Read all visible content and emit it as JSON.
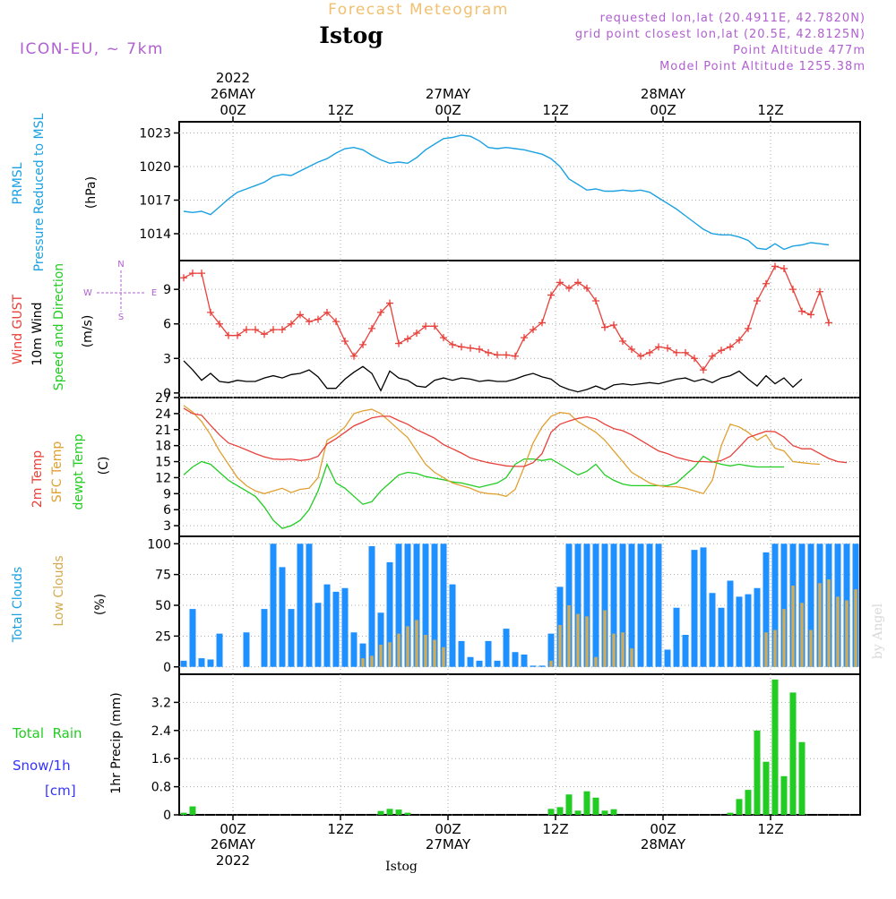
{
  "header": {
    "subtitle": "Forecast Meteogram",
    "title": "Istog",
    "model": "ICON-EU, ~ 7km",
    "info_lines": [
      "requested lon,lat (20.4911E, 42.7820N)",
      "grid point closest lon,lat (20.5E, 42.8125N)",
      "Point Altitude 477m",
      "Model Point Altitude 1255.38m"
    ],
    "watermark": "by Angel",
    "footer": "Istog"
  },
  "time_axis": {
    "top_ticks": [
      {
        "label": "00Z",
        "date": "26MAY",
        "year": "2022",
        "hour": 6
      },
      {
        "label": "12Z",
        "date": "",
        "year": "",
        "hour": 18
      },
      {
        "label": "00Z",
        "date": "27MAY",
        "year": "",
        "hour": 30
      },
      {
        "label": "12Z",
        "date": "",
        "year": "",
        "hour": 42
      },
      {
        "label": "00Z",
        "date": "28MAY",
        "year": "",
        "hour": 54
      },
      {
        "label": "12Z",
        "date": "",
        "year": "",
        "hour": 66
      }
    ],
    "bottom_ticks": [
      {
        "label": "00Z",
        "date": "26MAY",
        "year": "2022",
        "hour": 6
      },
      {
        "label": "12Z",
        "date": "",
        "year": "",
        "hour": 18
      },
      {
        "label": "00Z",
        "date": "27MAY",
        "year": "",
        "hour": 30
      },
      {
        "label": "12Z",
        "date": "",
        "year": "",
        "hour": 42
      },
      {
        "label": "00Z",
        "date": "28MAY",
        "year": "",
        "hour": 54
      },
      {
        "label": "12Z",
        "date": "",
        "year": "",
        "hour": 66
      }
    ]
  },
  "colors": {
    "pressure": "#1ba1e2",
    "gust": "#e8403a",
    "wind": "#000000",
    "t2m": "#e8403a",
    "sfc": "#e0a030",
    "dewpt": "#22cc22",
    "total_cloud": "#1e90ff",
    "low_cloud": "#d4aa50",
    "rain": "#22cc22",
    "snow": "#3333ff",
    "header_purple": "#b060d0",
    "subtitle_gold": "#f0c070"
  },
  "chart_data": [
    {
      "type": "line",
      "panel": "pressure",
      "ylabel_lines": [
        "PRMSL",
        "Pressure Reduced to MSL"
      ],
      "units": "(hPa)",
      "yticks": [
        1014,
        1017,
        1020,
        1023
      ],
      "ylim": [
        1011.6,
        1024
      ],
      "grid": true,
      "x_hours": [
        0,
        1,
        2,
        3,
        4,
        5,
        6,
        7,
        8,
        9,
        10,
        11,
        12,
        13,
        14,
        15,
        16,
        17,
        18,
        19,
        20,
        21,
        22,
        23,
        24,
        25,
        26,
        27,
        28,
        29,
        30,
        31,
        32,
        33,
        34,
        35,
        36,
        37,
        38,
        39,
        40,
        41,
        42,
        43,
        44,
        45,
        46,
        47,
        48,
        49,
        50,
        51,
        52,
        53,
        54,
        55,
        56,
        57,
        58,
        59,
        60,
        61,
        62,
        63,
        64,
        65,
        66,
        67,
        68,
        69,
        70,
        71,
        72,
        73,
        74,
        75
      ],
      "series": [
        {
          "values": [
            1016.0,
            1015.9,
            1016.0,
            1015.7,
            1016.4,
            1017.1,
            1017.7,
            1018.0,
            1018.3,
            1018.6,
            1019.1,
            1019.3,
            1019.2,
            1019.6,
            1020.0,
            1020.4,
            1020.7,
            1021.2,
            1021.6,
            1021.7,
            1021.5,
            1021.0,
            1020.6,
            1020.3,
            1020.4,
            1020.3,
            1020.8,
            1021.5,
            1022.0,
            1022.5,
            1022.6,
            1022.8,
            1022.7,
            1022.3,
            1021.7,
            1021.6,
            1021.7,
            1021.6,
            1021.5,
            1021.3,
            1021.1,
            1020.7,
            1020.0,
            1018.9,
            1018.4,
            1017.9,
            1018.0,
            1017.8,
            1017.8,
            1017.9,
            1017.8,
            1017.9,
            1017.7,
            1017.2,
            1016.7,
            1016.2,
            1015.6,
            1015.0,
            1014.4,
            1014.0,
            1013.9,
            1013.9,
            1013.7,
            1013.4,
            1012.7,
            1012.6,
            1013.1,
            1012.6,
            1012.9,
            1013.0,
            1013.2,
            1013.1,
            1013.0
          ]
        }
      ]
    },
    {
      "type": "line",
      "panel": "wind",
      "ylabel_lines": [
        "Wind GUST",
        "10m Wind",
        "Speed and Direction"
      ],
      "units": "(m/s)",
      "compass": {
        "n": "N",
        "s": "S",
        "w": "W",
        "e": "E"
      },
      "yticks": [
        0,
        3,
        6,
        9
      ],
      "ylim": [
        -0.4,
        11.5
      ],
      "grid": true,
      "series": [
        {
          "name": "Wind GUST",
          "values": [
            10.0,
            10.4,
            10.4,
            7.0,
            6.0,
            5.0,
            5.0,
            5.5,
            5.5,
            5.1,
            5.5,
            5.5,
            6.0,
            6.8,
            6.2,
            6.4,
            7.0,
            6.2,
            4.5,
            3.2,
            4.2,
            5.6,
            7.0,
            7.8,
            4.3,
            4.7,
            5.2,
            5.8,
            5.8,
            4.8,
            4.2,
            4.0,
            3.9,
            3.8,
            3.5,
            3.3,
            3.3,
            3.2,
            4.8,
            5.5,
            6.1,
            8.5,
            9.6,
            9.1,
            9.6,
            9.1,
            8.0,
            5.7,
            5.9,
            4.5,
            3.8,
            3.2,
            3.5,
            4.0,
            3.9,
            3.5,
            3.5,
            3.0,
            2.0,
            3.2,
            3.7,
            4.0,
            4.6,
            5.6,
            8.0,
            9.5,
            11.0,
            10.8,
            9.0,
            7.1,
            6.8,
            8.8,
            6.1
          ]
        },
        {
          "name": "10m Wind",
          "values": [
            2.8,
            2.0,
            1.1,
            1.7,
            1.0,
            0.9,
            1.1,
            1.0,
            1.0,
            1.3,
            1.5,
            1.3,
            1.6,
            1.7,
            2.0,
            1.4,
            0.4,
            0.4,
            1.2,
            1.8,
            2.3,
            1.7,
            0.2,
            1.9,
            1.3,
            1.1,
            0.6,
            0.5,
            1.1,
            1.3,
            1.1,
            1.3,
            1.2,
            1.0,
            1.1,
            1.0,
            1.0,
            1.2,
            1.5,
            1.7,
            1.4,
            1.2,
            0.6,
            0.3,
            0.1,
            0.3,
            0.6,
            0.3,
            0.7,
            0.8,
            0.7,
            0.8,
            0.9,
            0.8,
            1.0,
            1.2,
            1.3,
            1.0,
            1.2,
            0.9,
            1.3,
            1.5,
            1.9,
            1.2,
            0.6,
            1.5,
            0.8,
            1.3,
            0.5,
            1.2
          ]
        }
      ]
    },
    {
      "type": "line",
      "panel": "temperature",
      "ylabel_lines": [
        "2m Temp",
        "SFC Temp",
        "dewpt Temp"
      ],
      "units": "(C)",
      "yticks": [
        3,
        6,
        9,
        12,
        15,
        18,
        21,
        24,
        27
      ],
      "ylim": [
        1,
        27
      ],
      "grid": true,
      "series": [
        {
          "name": "2m Temp",
          "values": [
            25.0,
            24.0,
            23.7,
            21.8,
            20.0,
            18.5,
            17.9,
            17.2,
            16.5,
            15.9,
            15.5,
            15.4,
            15.5,
            15.2,
            15.4,
            16.0,
            18.3,
            19.3,
            20.5,
            21.7,
            22.4,
            23.2,
            23.5,
            23.5,
            22.7,
            22.0,
            21.0,
            20.2,
            19.4,
            18.2,
            17.4,
            16.6,
            15.7,
            15.2,
            14.8,
            14.5,
            14.2,
            14.1,
            14.1,
            14.8,
            16.5,
            20.5,
            22.0,
            22.6,
            23.1,
            23.4,
            23.0,
            22.0,
            21.2,
            20.8,
            20.0,
            19.0,
            18.0,
            17.0,
            16.5,
            15.8,
            15.4,
            15.0,
            15.0,
            14.9,
            15.2,
            16.0,
            17.7,
            19.5,
            20.1,
            20.7,
            20.6,
            19.6,
            18.0,
            17.4,
            17.4,
            16.5,
            15.6,
            15.0,
            14.8
          ]
        },
        {
          "name": "SFC Temp",
          "values": [
            25.5,
            24.3,
            22.5,
            20.0,
            17.0,
            14.5,
            12.0,
            10.5,
            9.5,
            9.0,
            9.5,
            10.0,
            9.2,
            9.8,
            10.0,
            12.0,
            19.0,
            20.0,
            21.5,
            24.0,
            24.5,
            24.8,
            24.0,
            22.5,
            21.0,
            19.5,
            17.0,
            14.5,
            13.0,
            12.0,
            11.0,
            10.5,
            10.0,
            9.3,
            9.0,
            8.9,
            8.5,
            9.8,
            14.0,
            18.5,
            21.5,
            23.5,
            24.2,
            24.0,
            22.5,
            21.5,
            20.5,
            19.0,
            17.0,
            15.0,
            13.0,
            12.0,
            11.0,
            10.5,
            10.3,
            10.3,
            10.0,
            9.5,
            9.0,
            11.5,
            18.0,
            22.0,
            21.5,
            20.5,
            19.0,
            20.0,
            17.5,
            17.0,
            15.0,
            14.8,
            14.6,
            14.5
          ]
        },
        {
          "name": "dewpt Temp",
          "values": [
            12.5,
            14.0,
            15.0,
            14.5,
            13.0,
            11.5,
            10.5,
            9.5,
            8.5,
            6.5,
            4.0,
            2.5,
            3.0,
            4.0,
            6.0,
            9.5,
            14.5,
            11.0,
            10.0,
            8.5,
            7.0,
            7.5,
            9.5,
            11.0,
            12.5,
            13.0,
            12.8,
            12.2,
            11.9,
            11.6,
            11.2,
            11.0,
            10.6,
            10.2,
            10.6,
            11.0,
            12.0,
            14.5,
            15.5,
            15.5,
            15.2,
            15.5,
            14.5,
            13.5,
            12.5,
            13.2,
            14.5,
            12.5,
            11.5,
            10.8,
            10.5,
            10.5,
            10.5,
            10.5,
            10.5,
            11.0,
            12.5,
            14.0,
            16.0,
            15.0,
            14.5,
            14.2,
            14.5,
            14.2,
            14.0,
            14.0,
            14.0,
            14.0
          ]
        }
      ]
    },
    {
      "type": "bar",
      "panel": "clouds",
      "ylabel_lines": [
        "Total Clouds",
        "Low Clouds"
      ],
      "units": "(%)",
      "yticks": [
        0,
        25,
        50,
        75,
        100
      ],
      "ylim": [
        -6,
        106
      ],
      "grid": true,
      "series": [
        {
          "name": "Total Clouds",
          "values": [
            5,
            47,
            7,
            6,
            27,
            0,
            0,
            28,
            0,
            47,
            100,
            81,
            47,
            100,
            100,
            52,
            67,
            61,
            64,
            28,
            19,
            98,
            44,
            85,
            100,
            100,
            100,
            100,
            100,
            100,
            67,
            21,
            8,
            5,
            21,
            5,
            31,
            12,
            10,
            1,
            1,
            27,
            65,
            100,
            100,
            100,
            100,
            100,
            100,
            100,
            100,
            100,
            100,
            100,
            14,
            48,
            26,
            95,
            97,
            60,
            48,
            70,
            57,
            59,
            64,
            93,
            100,
            100,
            100,
            100,
            100,
            100,
            100,
            100,
            100,
            100
          ]
        },
        {
          "name": "Low Clouds",
          "values": [
            0,
            0,
            0,
            0,
            0,
            0,
            0,
            0,
            0,
            0,
            0,
            0,
            0,
            0,
            0,
            0,
            0,
            0,
            0,
            0,
            7,
            9,
            18,
            20,
            27,
            33,
            38,
            26,
            22,
            16,
            0,
            0,
            0,
            0,
            0,
            0,
            0,
            0,
            0,
            0,
            0,
            5,
            34,
            50,
            43,
            41,
            8,
            46,
            27,
            28,
            15,
            0,
            0,
            0,
            0,
            0,
            0,
            0,
            0,
            0,
            0,
            0,
            0,
            0,
            0,
            28,
            30,
            47,
            66,
            52,
            30,
            68,
            71,
            57,
            54,
            63
          ]
        }
      ]
    },
    {
      "type": "bar",
      "panel": "precip",
      "legend": {
        "rain_label": "Total  Rain",
        "snow_label": "Snow/1h",
        "snow_unit": "[cm]"
      },
      "ylabel": "1hr Precip (mm)",
      "yticks": [
        0,
        0.8,
        1.6,
        2.4,
        3.2
      ],
      "ylabels": [
        "0",
        "0.8",
        "1.6",
        "2.4",
        "3.2"
      ],
      "ylim": [
        0,
        4.0
      ],
      "grid": true,
      "series": [
        {
          "name": "Total Rain",
          "values": [
            0.06,
            0.24,
            0,
            0,
            0,
            0,
            0,
            0,
            0,
            0,
            0,
            0,
            0,
            0,
            0,
            0,
            0,
            0,
            0,
            0,
            0,
            0,
            0.11,
            0.17,
            0.15,
            0.06,
            0,
            0,
            0,
            0,
            0,
            0,
            0,
            0,
            0,
            0,
            0,
            0,
            0,
            0,
            0,
            0.17,
            0.22,
            0.58,
            0.12,
            0.67,
            0.49,
            0.12,
            0.16,
            0,
            0,
            0,
            0,
            0,
            0,
            0,
            0,
            0,
            0,
            0,
            0,
            0.06,
            0.45,
            0.71,
            2.4,
            1.51,
            3.85,
            1.1,
            3.48,
            2.07
          ]
        }
      ]
    }
  ]
}
